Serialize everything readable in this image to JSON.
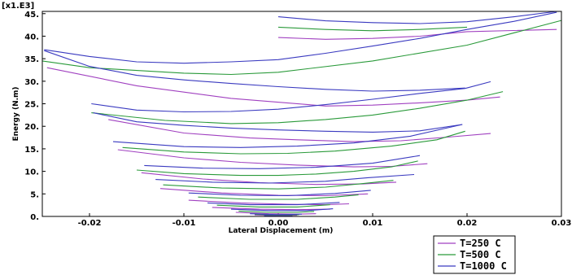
{
  "chart_data": {
    "type": "line",
    "scale_label": "[x1.E3]",
    "xlabel": "Lateral Displacement (m)",
    "ylabel": "Energy (N.m)",
    "xlim": [
      -0.025,
      0.03
    ],
    "ylim": [
      0,
      45.5
    ],
    "x_ticks": [
      -0.02,
      -0.01,
      0.0,
      0.01,
      0.02,
      0.03
    ],
    "x_tick_labels": [
      "-0.02",
      "-0.01",
      "0.00",
      "0.01",
      "0.02",
      "0.03"
    ],
    "y_ticks": [
      0,
      5,
      10,
      15,
      20,
      25,
      30,
      35,
      40,
      45
    ],
    "y_tick_labels": [
      "0.",
      "5.",
      "10.",
      "15.",
      "20.",
      "25.",
      "30.",
      "35.",
      "40.",
      "45."
    ],
    "grid": false,
    "legend_position": "bottom-right",
    "series": [
      {
        "name": "T=250 C",
        "color": "#a040c0",
        "curves": [
          [
            [
              -0.0245,
              33.0
            ],
            [
              -0.015,
              29.0
            ],
            [
              -0.005,
              26.2
            ],
            [
              0.005,
              24.5
            ],
            [
              0.01,
              24.7
            ],
            [
              0.015,
              25.2
            ],
            [
              0.02,
              25.8
            ],
            [
              0.0235,
              26.5
            ]
          ],
          [
            [
              0.0,
              39.7
            ],
            [
              0.005,
              39.3
            ],
            [
              0.01,
              39.5
            ],
            [
              0.015,
              40.0
            ],
            [
              0.02,
              41.0
            ],
            [
              0.0295,
              41.5
            ]
          ],
          [
            [
              -0.018,
              21.5
            ],
            [
              -0.01,
              18.5
            ],
            [
              -0.003,
              17.4
            ],
            [
              0.002,
              17.0
            ],
            [
              0.008,
              16.6
            ],
            [
              0.013,
              16.8
            ],
            [
              0.018,
              17.6
            ],
            [
              0.0225,
              18.4
            ]
          ],
          [
            [
              -0.017,
              14.8
            ],
            [
              -0.01,
              13.0
            ],
            [
              -0.004,
              12.0
            ],
            [
              0.002,
              11.4
            ],
            [
              0.008,
              11.0
            ],
            [
              0.012,
              11.1
            ],
            [
              0.0158,
              11.7
            ]
          ],
          [
            [
              -0.0145,
              9.7
            ],
            [
              -0.008,
              8.3
            ],
            [
              -0.002,
              7.5
            ],
            [
              0.004,
              7.1
            ],
            [
              0.009,
              7.2
            ],
            [
              0.0125,
              7.6
            ]
          ],
          [
            [
              -0.0125,
              6.2
            ],
            [
              -0.006,
              5.2
            ],
            [
              0.0,
              4.7
            ],
            [
              0.005,
              4.6
            ],
            [
              0.0095,
              5.0
            ]
          ],
          [
            [
              -0.0095,
              3.6
            ],
            [
              -0.004,
              3.0
            ],
            [
              0.001,
              2.7
            ],
            [
              0.005,
              2.6
            ],
            [
              0.0075,
              2.8
            ]
          ],
          [
            [
              -0.007,
              2.0
            ],
            [
              -0.002,
              1.6
            ],
            [
              0.002,
              1.5
            ],
            [
              0.0055,
              1.6
            ]
          ],
          [
            [
              -0.0045,
              0.9
            ],
            [
              -0.001,
              0.6
            ],
            [
              0.002,
              0.5
            ],
            [
              0.004,
              0.6
            ]
          ],
          [
            [
              -0.0025,
              0.35
            ],
            [
              0.0,
              0.2
            ],
            [
              0.002,
              0.25
            ]
          ]
        ]
      },
      {
        "name": "T=500 C",
        "color": "#2a9a3a",
        "curves": [
          [
            [
              -0.025,
              34.5
            ],
            [
              -0.02,
              33.0
            ],
            [
              -0.01,
              31.8
            ],
            [
              -0.005,
              31.5
            ],
            [
              0.0,
              32.0
            ],
            [
              0.01,
              34.5
            ],
            [
              0.02,
              38.0
            ],
            [
              0.03,
              43.5
            ]
          ],
          [
            [
              0.0,
              42.0
            ],
            [
              0.005,
              41.5
            ],
            [
              0.01,
              41.2
            ],
            [
              0.015,
              41.5
            ],
            [
              0.02,
              42.0
            ]
          ],
          [
            [
              -0.0198,
              23.0
            ],
            [
              -0.012,
              21.3
            ],
            [
              -0.005,
              20.6
            ],
            [
              0.0,
              20.8
            ],
            [
              0.005,
              21.5
            ],
            [
              0.01,
              22.5
            ],
            [
              0.015,
              24.0
            ],
            [
              0.02,
              25.8
            ],
            [
              0.0238,
              27.7
            ]
          ],
          [
            [
              -0.0165,
              15.3
            ],
            [
              -0.01,
              14.3
            ],
            [
              -0.004,
              13.9
            ],
            [
              0.001,
              14.0
            ],
            [
              0.006,
              14.5
            ],
            [
              0.012,
              15.6
            ],
            [
              0.0168,
              17.0
            ],
            [
              0.0198,
              18.9
            ]
          ],
          [
            [
              -0.015,
              10.3
            ],
            [
              -0.01,
              9.5
            ],
            [
              -0.004,
              9.1
            ],
            [
              0.0,
              9.1
            ],
            [
              0.004,
              9.4
            ],
            [
              0.008,
              10.0
            ],
            [
              0.012,
              11.0
            ],
            [
              0.0148,
              12.3
            ]
          ],
          [
            [
              -0.0122,
              7.0
            ],
            [
              -0.006,
              6.3
            ],
            [
              0.0,
              6.1
            ],
            [
              0.005,
              6.5
            ],
            [
              0.009,
              7.3
            ],
            [
              0.0122,
              8.0
            ]
          ],
          [
            [
              -0.0085,
              4.3
            ],
            [
              -0.003,
              3.8
            ],
            [
              0.002,
              3.8
            ],
            [
              0.006,
              4.3
            ],
            [
              0.0085,
              4.8
            ]
          ],
          [
            [
              -0.0065,
              2.5
            ],
            [
              -0.002,
              2.1
            ],
            [
              0.002,
              2.1
            ],
            [
              0.0055,
              2.6
            ]
          ],
          [
            [
              -0.0042,
              1.2
            ],
            [
              -0.001,
              0.9
            ],
            [
              0.002,
              0.9
            ],
            [
              0.0038,
              1.1
            ]
          ],
          [
            [
              -0.0025,
              0.45
            ],
            [
              0.0,
              0.3
            ],
            [
              0.0022,
              0.4
            ]
          ]
        ]
      },
      {
        "name": "T=1000 C",
        "color": "#3a3ac0",
        "curves": [
          [
            [
              -0.0248,
              37.0
            ],
            [
              -0.02,
              35.5
            ],
            [
              -0.015,
              34.3
            ],
            [
              -0.01,
              34.0
            ],
            [
              -0.005,
              34.3
            ],
            [
              0.0,
              34.8
            ],
            [
              0.005,
              36.2
            ],
            [
              0.01,
              37.8
            ],
            [
              0.015,
              39.5
            ],
            [
              0.02,
              41.5
            ],
            [
              0.025,
              43.3
            ],
            [
              0.0295,
              45.3
            ]
          ],
          [
            [
              0.0,
              44.3
            ],
            [
              0.005,
              43.4
            ],
            [
              0.01,
              43.0
            ],
            [
              0.015,
              42.8
            ],
            [
              0.02,
              43.2
            ],
            [
              0.025,
              44.3
            ],
            [
              0.0295,
              45.5
            ]
          ],
          [
            [
              -0.0248,
              36.8
            ],
            [
              -0.02,
              33.3
            ],
            [
              -0.015,
              31.3
            ],
            [
              -0.01,
              30.3
            ],
            [
              -0.005,
              29.5
            ],
            [
              0.0,
              28.8
            ],
            [
              0.005,
              28.2
            ],
            [
              0.01,
              27.8
            ],
            [
              0.015,
              28.0
            ],
            [
              0.0198,
              28.5
            ]
          ],
          [
            [
              -0.0198,
              25.0
            ],
            [
              -0.015,
              23.6
            ],
            [
              -0.01,
              23.2
            ],
            [
              -0.005,
              23.3
            ],
            [
              0.0,
              23.8
            ],
            [
              0.005,
              24.8
            ],
            [
              0.01,
              26.0
            ],
            [
              0.015,
              27.3
            ],
            [
              0.0198,
              28.4
            ],
            [
              0.0225,
              29.9
            ]
          ],
          [
            [
              -0.0196,
              23.0
            ],
            [
              -0.015,
              21.0
            ],
            [
              -0.01,
              20.2
            ],
            [
              -0.005,
              19.6
            ],
            [
              0.0,
              19.2
            ],
            [
              0.005,
              18.9
            ],
            [
              0.01,
              18.7
            ],
            [
              0.015,
              19.0
            ],
            [
              0.0195,
              20.4
            ]
          ],
          [
            [
              -0.0175,
              16.6
            ],
            [
              -0.01,
              15.5
            ],
            [
              -0.004,
              15.3
            ],
            [
              0.002,
              15.6
            ],
            [
              0.008,
              16.3
            ],
            [
              0.014,
              17.8
            ],
            [
              0.0195,
              20.4
            ]
          ],
          [
            [
              -0.0142,
              11.3
            ],
            [
              -0.008,
              10.7
            ],
            [
              -0.002,
              10.6
            ],
            [
              0.004,
              10.9
            ],
            [
              0.01,
              11.8
            ],
            [
              0.015,
              13.5
            ]
          ],
          [
            [
              -0.013,
              8.2
            ],
            [
              -0.007,
              7.6
            ],
            [
              -0.001,
              7.4
            ],
            [
              0.005,
              7.8
            ],
            [
              0.0095,
              8.6
            ],
            [
              0.0144,
              9.3
            ]
          ],
          [
            [
              -0.0095,
              5.2
            ],
            [
              -0.004,
              4.7
            ],
            [
              0.001,
              4.6
            ],
            [
              0.006,
              5.1
            ],
            [
              0.0098,
              5.8
            ]
          ],
          [
            [
              -0.0075,
              3.0
            ],
            [
              -0.003,
              2.6
            ],
            [
              0.002,
              2.6
            ],
            [
              0.0065,
              3.1
            ]
          ],
          [
            [
              -0.005,
              1.6
            ],
            [
              -0.001,
              1.3
            ],
            [
              0.003,
              1.3
            ],
            [
              0.0058,
              1.7
            ]
          ],
          [
            [
              -0.003,
              0.6
            ],
            [
              0.0,
              0.4
            ],
            [
              0.0025,
              0.5
            ]
          ],
          [
            [
              -0.0015,
              0.15
            ],
            [
              0.0,
              0.05
            ],
            [
              0.0015,
              0.1
            ]
          ]
        ]
      }
    ]
  }
}
